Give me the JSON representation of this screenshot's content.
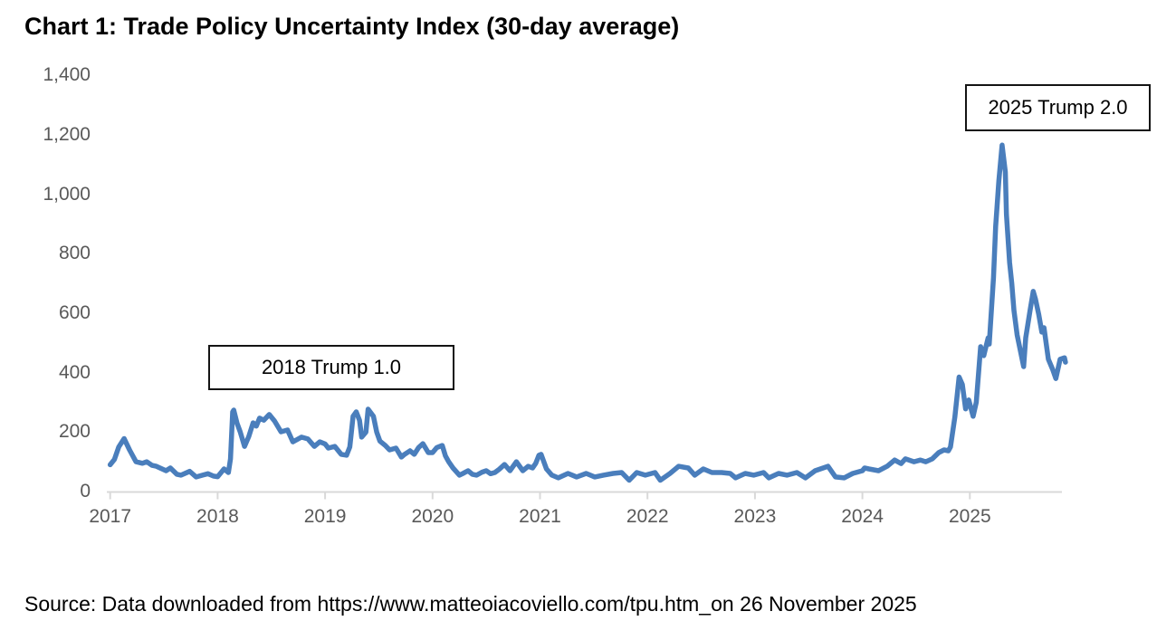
{
  "title": "Chart 1: Trade Policy Uncertainty Index (30-day average)",
  "source": "Source: Data downloaded from https://www.matteoiacoviello.com/tpu.htm_on 26 November 2025",
  "annotations": [
    {
      "label": "2018 Trump 1.0"
    },
    {
      "label": "2025 Trump 2.0"
    }
  ],
  "colors": {
    "line": "#4a7ebc",
    "axis": "#d9d9d9",
    "tick_label": "#595959",
    "annotation_border": "#141414"
  },
  "chart_data": {
    "type": "line",
    "title": "Chart 1: Trade Policy Uncertainty Index (30-day average)",
    "xlabel": "",
    "ylabel": "",
    "grid": false,
    "legend": "none",
    "xlim": [
      2017.0,
      2025.97
    ],
    "ylim": [
      0,
      1400
    ],
    "y_ticks": [
      {
        "label": "0",
        "value": 0
      },
      {
        "label": "200",
        "value": 200
      },
      {
        "label": "400",
        "value": 400
      },
      {
        "label": "600",
        "value": 600
      },
      {
        "label": "800",
        "value": 800
      },
      {
        "label": "1,000",
        "value": 1000
      },
      {
        "label": "1,200",
        "value": 1200
      },
      {
        "label": "1,400",
        "value": 1400
      }
    ],
    "x_ticks": [
      {
        "label": "2017",
        "value": 2017
      },
      {
        "label": "2018",
        "value": 2018
      },
      {
        "label": "2019",
        "value": 2019
      },
      {
        "label": "2020",
        "value": 2020
      },
      {
        "label": "2021",
        "value": 2021
      },
      {
        "label": "2022",
        "value": 2022
      },
      {
        "label": "2023",
        "value": 2023
      },
      {
        "label": "2024",
        "value": 2024
      },
      {
        "label": "2025",
        "value": 2025
      }
    ],
    "series": [
      {
        "name": "Trade Policy Uncertainty Index (30-day average)",
        "points": [
          [
            2017.0,
            90
          ],
          [
            2017.04,
            108
          ],
          [
            2017.08,
            150
          ],
          [
            2017.13,
            178
          ],
          [
            2017.18,
            140
          ],
          [
            2017.24,
            100
          ],
          [
            2017.3,
            95
          ],
          [
            2017.34,
            100
          ],
          [
            2017.39,
            88
          ],
          [
            2017.43,
            85
          ],
          [
            2017.52,
            70
          ],
          [
            2017.56,
            79
          ],
          [
            2017.62,
            58
          ],
          [
            2017.66,
            55
          ],
          [
            2017.74,
            68
          ],
          [
            2017.8,
            49
          ],
          [
            2017.86,
            55
          ],
          [
            2017.91,
            60
          ],
          [
            2017.96,
            52
          ],
          [
            2018.0,
            50
          ],
          [
            2018.06,
            76
          ],
          [
            2018.1,
            64
          ],
          [
            2018.12,
            110
          ],
          [
            2018.14,
            268
          ],
          [
            2018.15,
            274
          ],
          [
            2018.18,
            230
          ],
          [
            2018.21,
            201
          ],
          [
            2018.25,
            152
          ],
          [
            2018.29,
            185
          ],
          [
            2018.33,
            231
          ],
          [
            2018.36,
            220
          ],
          [
            2018.39,
            247
          ],
          [
            2018.43,
            240
          ],
          [
            2018.48,
            259
          ],
          [
            2018.53,
            237
          ],
          [
            2018.59,
            201
          ],
          [
            2018.65,
            207
          ],
          [
            2018.7,
            167
          ],
          [
            2018.78,
            183
          ],
          [
            2018.84,
            177
          ],
          [
            2018.9,
            152
          ],
          [
            2018.95,
            167
          ],
          [
            2019.0,
            160
          ],
          [
            2019.03,
            146
          ],
          [
            2019.09,
            152
          ],
          [
            2019.15,
            125
          ],
          [
            2019.2,
            122
          ],
          [
            2019.23,
            150
          ],
          [
            2019.26,
            253
          ],
          [
            2019.29,
            268
          ],
          [
            2019.32,
            240
          ],
          [
            2019.34,
            183
          ],
          [
            2019.38,
            200
          ],
          [
            2019.4,
            277
          ],
          [
            2019.45,
            253
          ],
          [
            2019.48,
            200
          ],
          [
            2019.51,
            170
          ],
          [
            2019.56,
            155
          ],
          [
            2019.6,
            140
          ],
          [
            2019.66,
            146
          ],
          [
            2019.71,
            116
          ],
          [
            2019.74,
            125
          ],
          [
            2019.79,
            137
          ],
          [
            2019.83,
            125
          ],
          [
            2019.87,
            148
          ],
          [
            2019.91,
            161
          ],
          [
            2019.96,
            131
          ],
          [
            2020.0,
            131
          ],
          [
            2020.04,
            148
          ],
          [
            2020.09,
            155
          ],
          [
            2020.12,
            120
          ],
          [
            2020.15,
            100
          ],
          [
            2020.19,
            79
          ],
          [
            2020.25,
            55
          ],
          [
            2020.29,
            62
          ],
          [
            2020.33,
            70
          ],
          [
            2020.37,
            58
          ],
          [
            2020.41,
            55
          ],
          [
            2020.46,
            65
          ],
          [
            2020.5,
            70
          ],
          [
            2020.54,
            60
          ],
          [
            2020.58,
            64
          ],
          [
            2020.62,
            75
          ],
          [
            2020.67,
            91
          ],
          [
            2020.72,
            70
          ],
          [
            2020.78,
            100
          ],
          [
            2020.84,
            70
          ],
          [
            2020.89,
            85
          ],
          [
            2020.93,
            79
          ],
          [
            2020.96,
            95
          ],
          [
            2020.99,
            122
          ],
          [
            2021.01,
            125
          ],
          [
            2021.06,
            76
          ],
          [
            2021.11,
            55
          ],
          [
            2021.17,
            46
          ],
          [
            2021.26,
            61
          ],
          [
            2021.34,
            49
          ],
          [
            2021.43,
            61
          ],
          [
            2021.51,
            49
          ],
          [
            2021.59,
            55
          ],
          [
            2021.68,
            61
          ],
          [
            2021.76,
            64
          ],
          [
            2021.83,
            38
          ],
          [
            2021.9,
            64
          ],
          [
            2021.98,
            55
          ],
          [
            2022.07,
            64
          ],
          [
            2022.12,
            38
          ],
          [
            2022.21,
            61
          ],
          [
            2022.29,
            85
          ],
          [
            2022.38,
            79
          ],
          [
            2022.44,
            55
          ],
          [
            2022.52,
            76
          ],
          [
            2022.6,
            64
          ],
          [
            2022.69,
            64
          ],
          [
            2022.77,
            61
          ],
          [
            2022.82,
            46
          ],
          [
            2022.91,
            61
          ],
          [
            2022.99,
            55
          ],
          [
            2023.08,
            64
          ],
          [
            2023.13,
            46
          ],
          [
            2023.22,
            61
          ],
          [
            2023.3,
            55
          ],
          [
            2023.39,
            64
          ],
          [
            2023.47,
            46
          ],
          [
            2023.56,
            70
          ],
          [
            2023.68,
            85
          ],
          [
            2023.75,
            49
          ],
          [
            2023.83,
            46
          ],
          [
            2023.91,
            61
          ],
          [
            2024.0,
            70
          ],
          [
            2024.02,
            79
          ],
          [
            2024.06,
            76
          ],
          [
            2024.15,
            70
          ],
          [
            2024.23,
            85
          ],
          [
            2024.3,
            106
          ],
          [
            2024.36,
            94
          ],
          [
            2024.4,
            110
          ],
          [
            2024.48,
            100
          ],
          [
            2024.54,
            106
          ],
          [
            2024.59,
            100
          ],
          [
            2024.65,
            110
          ],
          [
            2024.71,
            131
          ],
          [
            2024.76,
            140
          ],
          [
            2024.8,
            137
          ],
          [
            2024.82,
            150
          ],
          [
            2024.86,
            250
          ],
          [
            2024.9,
            385
          ],
          [
            2024.93,
            360
          ],
          [
            2024.96,
            278
          ],
          [
            2024.99,
            308
          ],
          [
            2025.03,
            253
          ],
          [
            2025.06,
            300
          ],
          [
            2025.1,
            487
          ],
          [
            2025.13,
            457
          ],
          [
            2025.14,
            472
          ],
          [
            2025.17,
            517
          ],
          [
            2025.18,
            496
          ],
          [
            2025.22,
            719
          ],
          [
            2025.24,
            892
          ],
          [
            2025.27,
            1044
          ],
          [
            2025.3,
            1165
          ],
          [
            2025.33,
            1075
          ],
          [
            2025.34,
            932
          ],
          [
            2025.37,
            770
          ],
          [
            2025.39,
            700
          ],
          [
            2025.41,
            609
          ],
          [
            2025.44,
            527
          ],
          [
            2025.5,
            420
          ],
          [
            2025.52,
            517
          ],
          [
            2025.56,
            609
          ],
          [
            2025.59,
            673
          ],
          [
            2025.61,
            648
          ],
          [
            2025.64,
            597
          ],
          [
            2025.67,
            536
          ],
          [
            2025.69,
            551
          ],
          [
            2025.73,
            445
          ],
          [
            2025.77,
            411
          ],
          [
            2025.8,
            380
          ],
          [
            2025.84,
            445
          ],
          [
            2025.88,
            450
          ],
          [
            2025.89,
            435
          ]
        ]
      }
    ]
  }
}
